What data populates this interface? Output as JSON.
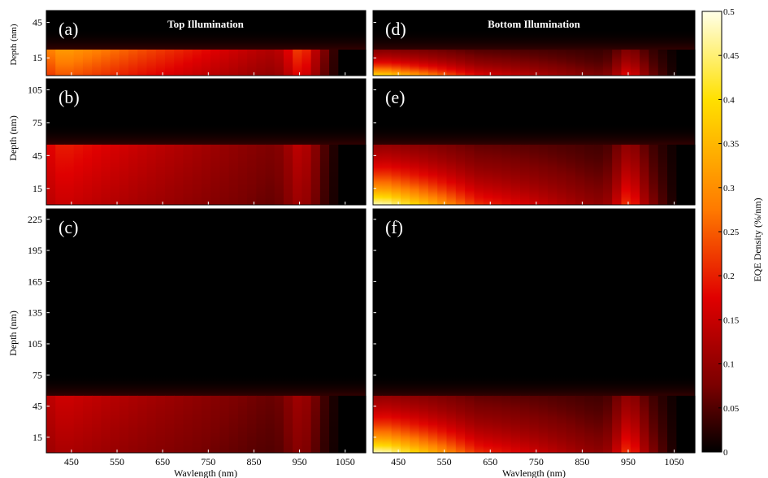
{
  "chart_data": {
    "type": "heatmap",
    "panel_titles": [
      "Top Illumination",
      "Bottom Illumination"
    ],
    "xlabel": "Wavlength (nm)",
    "ylabel_short": "Depth (nm)",
    "ylabel": "Depth (nm)",
    "x_ticks": [
      450,
      550,
      650,
      750,
      850,
      950,
      1050
    ],
    "xlim": [
      395,
      1095
    ],
    "colorbar": {
      "label": "EQE Density (%/nm)",
      "ticks": [
        "0.5",
        "0.45",
        "0.4",
        "0.35",
        "0.3",
        "0.25",
        "0.2",
        "0.15",
        "0.1",
        "0.05",
        "0"
      ],
      "range": [
        0,
        0.5
      ],
      "colormap": "hot",
      "colors": [
        "#000000",
        "#7a0000",
        "#e00000",
        "#ff7a00",
        "#ffe000",
        "#ffffe8"
      ]
    },
    "panels": [
      {
        "label": "(a)",
        "illumination": "top",
        "ylim": [
          0,
          55
        ],
        "y_ticks": [
          15,
          45
        ],
        "absorber_top": 22,
        "peak_density": 0.32,
        "profile": "top"
      },
      {
        "label": "(b)",
        "illumination": "top",
        "ylim": [
          0,
          115
        ],
        "y_ticks": [
          15,
          45,
          75,
          105
        ],
        "absorber_top": 55,
        "peak_density": 0.2,
        "profile": "top"
      },
      {
        "label": "(c)",
        "illumination": "top",
        "ylim": [
          0,
          235
        ],
        "y_ticks": [
          15,
          45,
          75,
          105,
          135,
          165,
          195,
          225
        ],
        "absorber_top": 55,
        "peak_density": 0.16,
        "profile": "top"
      },
      {
        "label": "(d)",
        "illumination": "bottom",
        "ylim": [
          0,
          55
        ],
        "y_ticks": [
          15,
          45
        ],
        "absorber_top": 22,
        "peak_density": 0.4,
        "profile": "bottom"
      },
      {
        "label": "(e)",
        "illumination": "bottom",
        "ylim": [
          0,
          115
        ],
        "y_ticks": [
          15,
          45,
          75,
          105
        ],
        "absorber_top": 55,
        "peak_density": 0.48,
        "profile": "bottom"
      },
      {
        "label": "(f)",
        "illumination": "bottom",
        "ylim": [
          0,
          235
        ],
        "y_ticks": [
          15,
          45,
          75,
          105,
          135,
          165,
          195,
          225
        ],
        "absorber_top": 55,
        "peak_density": 0.48,
        "profile": "bottom"
      }
    ]
  }
}
